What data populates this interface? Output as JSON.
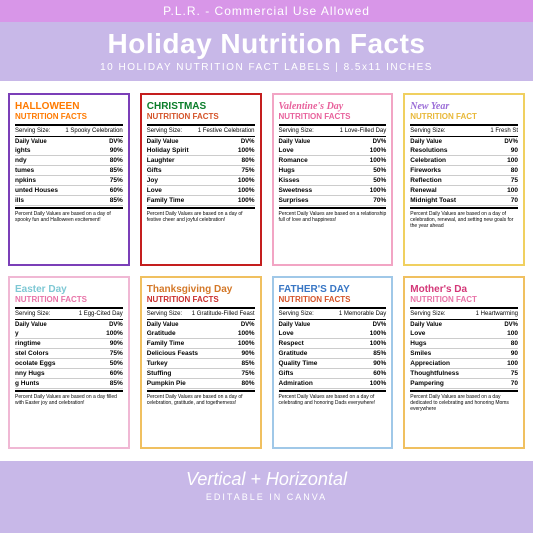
{
  "header": {
    "plr": "P.L.R. - Commercial Use Allowed",
    "title": "Holiday Nutrition Facts",
    "subtitle": "10 HOLIDAY NUTRITION FACT LABELS | 8.5x11 INCHES"
  },
  "footer": {
    "main": "Vertical + Horizontal",
    "sub": "EDITABLE IN CANVA"
  },
  "cards": [
    {
      "title": "HALLOWEEN",
      "subtitle": "NUTRITION FACTS",
      "titleColor": "#ff7a00",
      "borderColor": "#7b3fb8",
      "titleFont": "",
      "serving": "1 Spooky Celebration",
      "rows": [
        [
          "ights",
          "90%"
        ],
        [
          "ndy",
          "80%"
        ],
        [
          "tumes",
          "85%"
        ],
        [
          "npkins",
          "75%"
        ],
        [
          "unted Houses",
          "60%"
        ],
        [
          "ills",
          "85%"
        ]
      ],
      "foot": "Percent Daily Values are based on a day of spooky fun and Halloween excitement!"
    },
    {
      "title": "CHRISTMAS",
      "subtitle": "NUTRITION FACTS",
      "titleColor": "#0a7d2a",
      "subColor": "#d4542a",
      "borderColor": "#c41e1e",
      "titleFont": "",
      "serving": "1 Festive Celebration",
      "rows": [
        [
          "Holiday Spirit",
          "100%"
        ],
        [
          "Laughter",
          "80%"
        ],
        [
          "Gifts",
          "75%"
        ],
        [
          "Joy",
          "100%"
        ],
        [
          "Love",
          "100%"
        ],
        [
          "Family Time",
          "100%"
        ]
      ],
      "foot": "Percent Daily Values are based on a day of festive cheer and joyful celebration!"
    },
    {
      "title": "Valentine's Day",
      "subtitle": "NUTRITION FACTS",
      "titleColor": "#e8629c",
      "borderColor": "#f2a5c4",
      "titleFont": "script",
      "serving": "1 Love-Filled Day",
      "rows": [
        [
          "Love",
          "100%"
        ],
        [
          "Romance",
          "100%"
        ],
        [
          "Hugs",
          "50%"
        ],
        [
          "Kisses",
          "50%"
        ],
        [
          "Sweetness",
          "100%"
        ],
        [
          "Surprises",
          "70%"
        ]
      ],
      "foot": "Percent Daily Values are based on a relationship full of love and happiness!"
    },
    {
      "title": "New Year",
      "subtitle": "NUTRITION FACT",
      "titleColor": "#9b6dd7",
      "subColor": "#e8b838",
      "borderColor": "#f0d060",
      "titleFont": "script",
      "serving": "1 Fresh St",
      "rows": [
        [
          "Resolutions",
          "90"
        ],
        [
          "Celebration",
          "100"
        ],
        [
          "Fireworks",
          "80"
        ],
        [
          "Reflection",
          "75"
        ],
        [
          "Renewal",
          "100"
        ],
        [
          "Midnight Toast",
          "70"
        ]
      ],
      "foot": "Percent Daily Values are based on a day of celebration, renewal, and setting new goals for the year ahead"
    },
    {
      "title": "Easter Day",
      "subtitle": "NUTRITION FACTS",
      "titleColor": "#7ec8d4",
      "subColor": "#e874a8",
      "borderColor": "#f0b8d4",
      "titleFont": "",
      "serving": "1 Egg-Cited Day",
      "rows": [
        [
          "y",
          "100%"
        ],
        [
          "ringtime",
          "90%"
        ],
        [
          "stel Colors",
          "75%"
        ],
        [
          "ocolate Eggs",
          "50%"
        ],
        [
          "nny Hugs",
          "60%"
        ],
        [
          "g Hunts",
          "85%"
        ]
      ],
      "foot": "Percent Daily Values are based on a day filled with Easter joy and celebration!"
    },
    {
      "title": "Thanksgiving Day",
      "subtitle": "NUTRITION FACTS",
      "titleColor": "#d47828",
      "subColor": "#c93030",
      "borderColor": "#f0c060",
      "titleFont": "",
      "serving": "1 Gratitude-Filled Feast",
      "rows": [
        [
          "Gratitude",
          "100%"
        ],
        [
          "Family Time",
          "100%"
        ],
        [
          "Delicious Feasts",
          "90%"
        ],
        [
          "Turkey",
          "85%"
        ],
        [
          "Stuffing",
          "75%"
        ],
        [
          "Pumpkin Pie",
          "80%"
        ]
      ],
      "foot": "Percent Daily Values are based on a day of celebration, gratitude, and togetherness!"
    },
    {
      "title": "FATHER'S DAY",
      "subtitle": "NUTRITION FACTS",
      "titleColor": "#3876c4",
      "subColor": "#d4542a",
      "borderColor": "#a0c8e8",
      "titleFont": "",
      "serving": "1 Memorable Day",
      "rows": [
        [
          "Love",
          "100%"
        ],
        [
          "Respect",
          "100%"
        ],
        [
          "Gratitude",
          "85%"
        ],
        [
          "Quality Time",
          "90%"
        ],
        [
          "Gifts",
          "60%"
        ],
        [
          "Admiration",
          "100%"
        ]
      ],
      "foot": "Percent Daily Values are based on a day of celebrating and honoring Dads everywhere!"
    },
    {
      "title": "Mother's Da",
      "subtitle": "NUTRITION FACT",
      "titleColor": "#d43878",
      "subColor": "#e874a8",
      "borderColor": "#f0c060",
      "titleFont": "",
      "serving": "1 Heartwarming",
      "rows": [
        [
          "Love",
          "100"
        ],
        [
          "Hugs",
          "80"
        ],
        [
          "Smiles",
          "90"
        ],
        [
          "Appreciation",
          "100"
        ],
        [
          "Thoughtfulness",
          "75"
        ],
        [
          "Pampering",
          "70"
        ]
      ],
      "foot": "Percent Daily Values are based on a day dedicated to celebrating and honoring Moms everywhere"
    }
  ]
}
